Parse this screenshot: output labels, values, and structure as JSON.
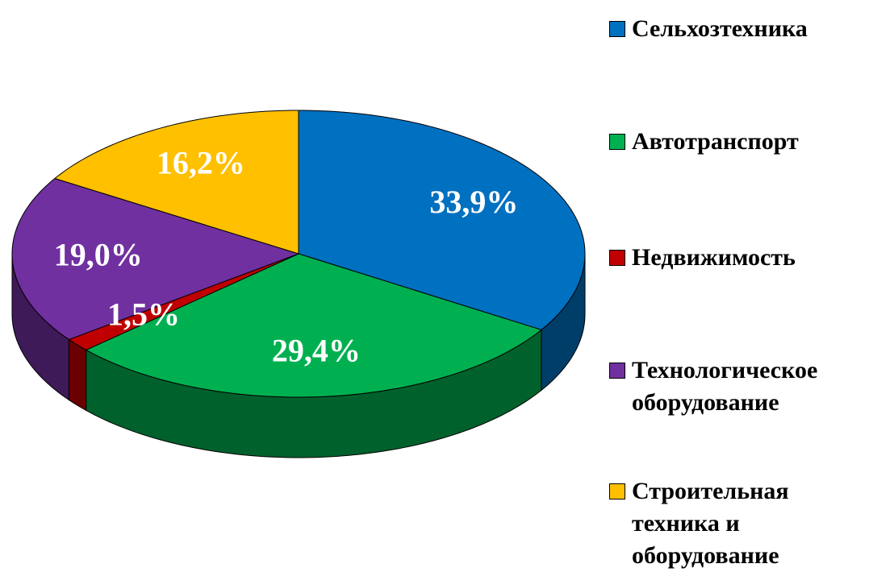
{
  "chart_data": {
    "type": "pie",
    "categories": [
      "Сельхозтехника",
      "Автотранспорт",
      "Недвижимость",
      "Технологическое оборудование",
      "Строительная техника и оборудование"
    ],
    "values": [
      33.9,
      29.4,
      1.5,
      19.0,
      16.2
    ],
    "value_labels": [
      "33,9%",
      "29,4%",
      "1,5%",
      "19,0%",
      "16,2%"
    ],
    "colors": [
      "#0070c0",
      "#00b050",
      "#c00000",
      "#7030a0",
      "#ffc000"
    ],
    "legend": "right"
  }
}
